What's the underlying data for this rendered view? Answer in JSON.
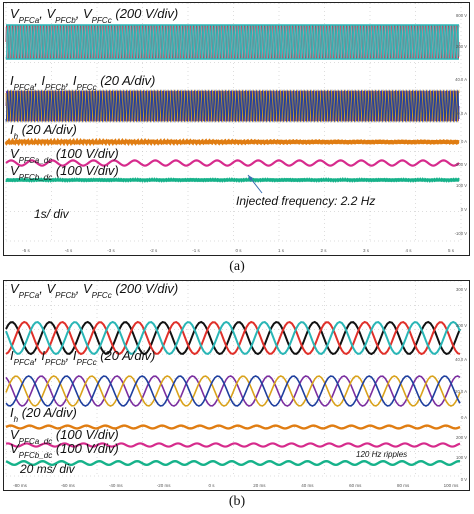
{
  "panels": [
    {
      "caption": "(a)",
      "labels": {
        "vpfc": [
          "V",
          "PFCa",
          ", V",
          "PFCb",
          ", V",
          "PFCc",
          " (200 V/div)"
        ],
        "ipfc": [
          "I",
          "PFCa",
          ", I",
          "PFCb",
          ", I",
          "PFCc",
          " (20 A/div)"
        ],
        "ih": [
          "I",
          "h",
          " (20 A/div)"
        ],
        "vdc_a": [
          "V",
          "PFCa_dc",
          " (100 V/div)"
        ],
        "vdc_b": [
          "V",
          "PFCb_dc",
          " (100 V/div)"
        ]
      },
      "timebase": "1s/ div",
      "annotation": "Injected frequency: 2.2 Hz",
      "x_ticks": [
        "-5 s",
        "-4 s",
        "-3 s",
        "-2 s",
        "-1 s",
        "0 s",
        "1 s",
        "2 s",
        "3 s",
        "4 s",
        "5 s"
      ],
      "y_ticks": [
        "800 V",
        "200 V",
        "40.0 A",
        "20.0 A",
        "0 A",
        "200 V",
        "100 V",
        "0 V",
        "-100 V"
      ]
    },
    {
      "caption": "(b)",
      "labels": {
        "vpfc": [
          "V",
          "PFCa",
          ", V",
          "PFCb",
          ", V",
          "PFCc",
          " (200 V/div)"
        ],
        "ipfc": [
          "I",
          "PFCa",
          ", I",
          "PFCb",
          ", I",
          "PFCc",
          " (20 A/div)"
        ],
        "ih": [
          "I",
          "h",
          " (20 A/div)"
        ],
        "vdc_a": [
          "V",
          "PFCa_dc",
          " (100 V/div)"
        ],
        "vdc_b": [
          "V",
          "PFCb_dc",
          " (100 V/div)"
        ]
      },
      "timebase": "20 ms/ div",
      "annotation": "120 Hz ripples",
      "x_ticks": [
        "-80 ms",
        "-60 ms",
        "-40 ms",
        "-20 ms",
        "0 s",
        "20 ms",
        "40 ms",
        "60 ms",
        "80 ms",
        "100 ms"
      ],
      "y_ticks": [
        "300 V",
        "200 V",
        "40.0 A",
        "20.0 A",
        "0 A",
        "200 V",
        "100 V",
        "0 V"
      ]
    }
  ],
  "chart_data": [
    {
      "type": "line",
      "title": "",
      "xlabel": "",
      "ylabel": "",
      "time_per_div": "1 s",
      "x_range_s": [
        -5,
        5
      ],
      "grid": true,
      "series": [
        {
          "name": "V_PFCa (200 V/div)",
          "color": "#cc1e3a",
          "kind": "three-phase-voltage",
          "freq_hz": 60
        },
        {
          "name": "V_PFCb (200 V/div)",
          "color": "#a0a0a8",
          "kind": "three-phase-voltage",
          "freq_hz": 60
        },
        {
          "name": "V_PFCc (200 V/div)",
          "color": "#2ab6b6",
          "kind": "three-phase-voltage",
          "freq_hz": 60
        },
        {
          "name": "I_PFCa (20 A/div)",
          "color": "#7b2fa0",
          "kind": "three-phase-current",
          "freq_hz": 60
        },
        {
          "name": "I_PFCb (20 A/div)",
          "color": "#d9a21b",
          "kind": "three-phase-current",
          "freq_hz": 60
        },
        {
          "name": "I_PFCc (20 A/div)",
          "color": "#1f3f9e",
          "kind": "three-phase-current",
          "freq_hz": 60
        },
        {
          "name": "I_h (20 A/div)",
          "color": "#e07d12",
          "kind": "dc-with-ripple"
        },
        {
          "name": "V_PFCa_dc (100 V/div)",
          "color": "#d62b8c",
          "kind": "dc-oscillation",
          "freq_hz": 2.2
        },
        {
          "name": "V_PFCb_dc (100 V/div)",
          "color": "#16b28a",
          "kind": "dc-flat"
        }
      ]
    },
    {
      "type": "line",
      "title": "",
      "xlabel": "",
      "ylabel": "",
      "time_per_div": "20 ms",
      "x_range_ms": [
        -100,
        100
      ],
      "grid": true,
      "series": [
        {
          "name": "V_PFCa (200 V/div)",
          "color": "#111111",
          "kind": "three-phase-voltage",
          "freq_hz": 60
        },
        {
          "name": "V_PFCb (200 V/div)",
          "color": "#e0302a",
          "kind": "three-phase-voltage",
          "freq_hz": 60
        },
        {
          "name": "V_PFCc (200 V/div)",
          "color": "#2ab6b6",
          "kind": "three-phase-voltage",
          "freq_hz": 60
        },
        {
          "name": "I_PFCa (20 A/div)",
          "color": "#7b2fa0",
          "kind": "three-phase-current",
          "freq_hz": 60
        },
        {
          "name": "I_PFCb (20 A/div)",
          "color": "#d9a21b",
          "kind": "three-phase-current",
          "freq_hz": 60
        },
        {
          "name": "I_PFCc (20 A/div)",
          "color": "#1f3f9e",
          "kind": "three-phase-current",
          "freq_hz": 60
        },
        {
          "name": "I_h (20 A/div)",
          "color": "#e07d12",
          "kind": "dc-with-ripple",
          "freq_hz": 120
        },
        {
          "name": "V_PFCa_dc (100 V/div)",
          "color": "#d62b8c",
          "kind": "dc-ripple",
          "freq_hz": 120
        },
        {
          "name": "V_PFCb_dc (100 V/div)",
          "color": "#16b28a",
          "kind": "dc-ripple",
          "freq_hz": 120
        }
      ]
    }
  ]
}
